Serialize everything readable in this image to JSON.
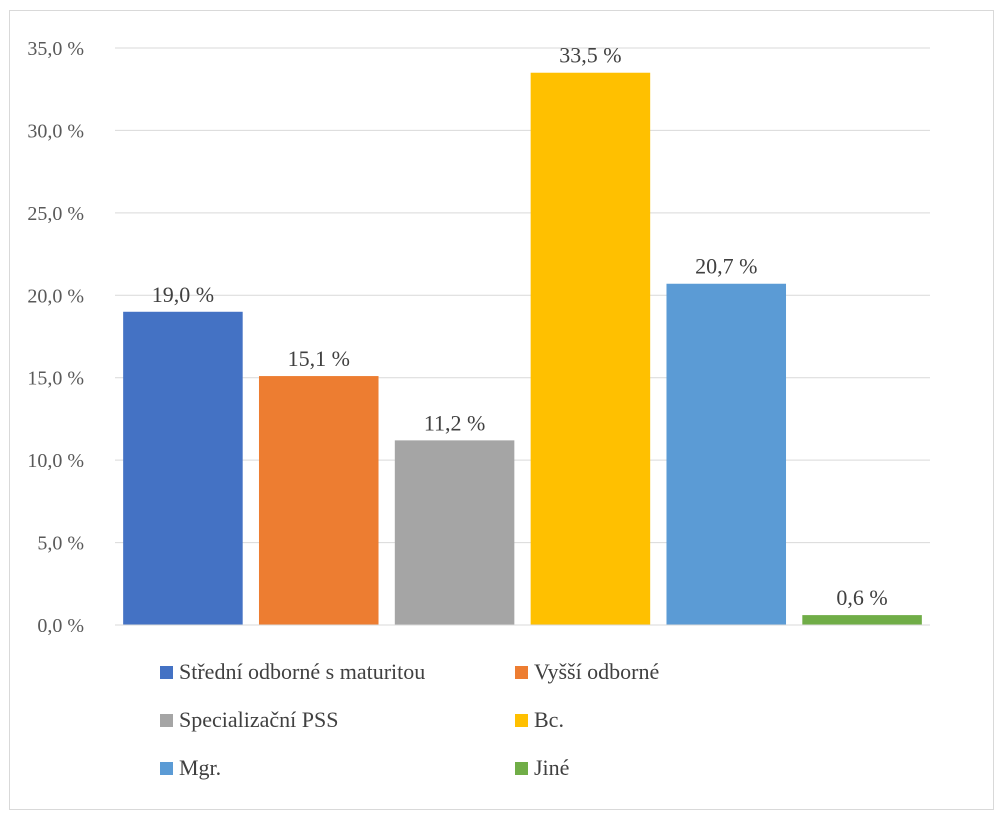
{
  "chart_data": {
    "type": "bar",
    "title": "",
    "xlabel": "",
    "ylabel": "",
    "ylim": [
      0,
      35
    ],
    "yticks": [
      0,
      5,
      10,
      15,
      20,
      25,
      30,
      35
    ],
    "ytick_labels": [
      "0,0 %",
      "5,0 %",
      "10,0 %",
      "15,0 %",
      "20,0 %",
      "25,0 %",
      "30,0 %",
      "35,0 %"
    ],
    "grid": true,
    "legend_position": "bottom",
    "categories": [
      "Střední odborné s maturitou",
      "Vyšší odborné",
      "Specializační PSS",
      "Bc.",
      "Mgr.",
      "Jiné"
    ],
    "values": [
      19.0,
      15.1,
      11.2,
      33.5,
      20.7,
      0.6
    ],
    "value_labels": [
      "19,0 %",
      "15,1 %",
      "11,2 %",
      "33,5 %",
      "20,7 %",
      "0,6 %"
    ],
    "colors": [
      "#4472c4",
      "#ed7d31",
      "#a5a5a5",
      "#ffc000",
      "#5b9bd5",
      "#70ad47"
    ]
  }
}
